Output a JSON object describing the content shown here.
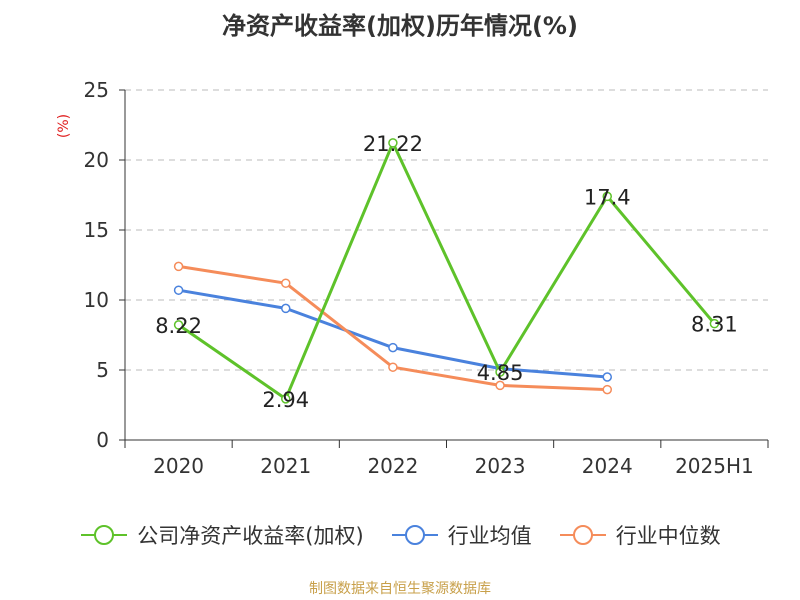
{
  "colors": {
    "series1": "#5ec22a",
    "series2": "#4a82dd",
    "series3": "#f58c5a",
    "axis": "#333333",
    "grid": "#bbbbbb",
    "unit": "#e02020",
    "source": "#c8a04a"
  },
  "footer": {
    "source": "制图数据来自恒生聚源数据库"
  },
  "chart_data": {
    "type": "line",
    "title": "净资产收益率(加权)历年情况(%)",
    "ylabel": "(%)",
    "categories": [
      "2020",
      "2021",
      "2022",
      "2023",
      "2024",
      "2025H1"
    ],
    "ylim": [
      0,
      25
    ],
    "yticks": [
      0,
      5,
      10,
      15,
      20,
      25
    ],
    "grid": true,
    "legend_position": "bottom",
    "series": [
      {
        "name": "公司净资产收益率(加权)",
        "values": [
          8.22,
          2.94,
          21.22,
          4.85,
          17.4,
          8.31
        ],
        "labels": [
          "8.22",
          "2.94",
          "21.22",
          "4.85",
          "17.4",
          "8.31"
        ]
      },
      {
        "name": "行业均值",
        "values": [
          10.7,
          9.4,
          6.6,
          5.1,
          4.5,
          null
        ]
      },
      {
        "name": "行业中位数",
        "values": [
          12.4,
          11.2,
          5.2,
          3.9,
          3.6,
          null
        ]
      }
    ]
  }
}
